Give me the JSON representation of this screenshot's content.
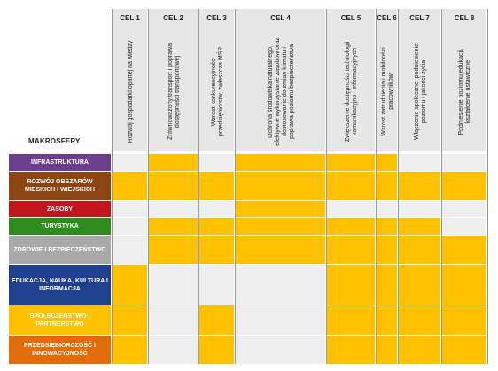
{
  "makrosfery_label": "MAKROSFERY",
  "colors": {
    "filled": "#ffc000",
    "empty": "#eeeeee",
    "header_bg": "#e6e6e6"
  },
  "goals": [
    {
      "title": "CEL 1",
      "desc": "Rozwój gospodarki opartej na wiedzy"
    },
    {
      "title": "CEL 2",
      "desc": "Zrównoważony transport i poprawa dostępności transportowej"
    },
    {
      "title": "CEL 3",
      "desc": "Wzrost konkurencyjności przedsiębiorstw, zwłaszcza MŚP"
    },
    {
      "title": "CEL 4",
      "desc": "Ochrona środowiska naturalnego, efektywne wykorzystanie zasobów oraz dostosowanie do zmian klimatu i poprawa poziomu bezpieczeństwa"
    },
    {
      "title": "CEL 5",
      "desc": "Zwiększenie dostępności technologii komunikacyjno - informacyjnych"
    },
    {
      "title": "CEL 6",
      "desc": "Wzrost zatrudnienia i mobilności pracowników"
    },
    {
      "title": "CEL 7",
      "desc": "Włączenie społeczne, podniesienie poziomu i jakości życia"
    },
    {
      "title": "CEL 8",
      "desc": "Podniesienie poziomu edukacji, kształcenie ustawiczne"
    }
  ],
  "rows": [
    {
      "label": "INFRASTRUKTURA",
      "color": "#6b3f8e",
      "cells": [
        0,
        1,
        0,
        1,
        1,
        1,
        0,
        0
      ]
    },
    {
      "label": "ROZWÓJ OBSZARÓW MIESKICH I WIEJSKICH",
      "color": "#8b4513",
      "cells": [
        1,
        1,
        1,
        1,
        1,
        1,
        1,
        1
      ]
    },
    {
      "label": "ZASOBY",
      "color": "#c0161c",
      "cells": [
        0,
        0,
        0,
        1,
        0,
        0,
        0,
        0
      ]
    },
    {
      "label": "TURYSTYKA",
      "color": "#2e8b1e",
      "cells": [
        0,
        1,
        1,
        1,
        1,
        1,
        1,
        0
      ]
    },
    {
      "label": "ZDROWIE I BEZPIECZEŃSTWO",
      "color": "#a9a9a9",
      "cells": [
        0,
        1,
        1,
        1,
        1,
        1,
        1,
        1
      ]
    },
    {
      "label": "EDUKACJA, NAUKA, KULTURA I INFORMACJA",
      "color": "#1f3f8f",
      "cells": [
        1,
        0,
        0,
        0,
        1,
        1,
        1,
        1
      ]
    },
    {
      "label": "SPOŁECZEŃSTWO I PARTNERSTWO",
      "color": "#ffc000",
      "cells": [
        1,
        0,
        1,
        0,
        1,
        1,
        1,
        1
      ]
    },
    {
      "label": "PRZEDSIĘBIORCZOŚĆ I INNOWACYJNOŚĆ",
      "color": "#e36c0a",
      "cells": [
        1,
        0,
        1,
        0,
        1,
        1,
        1,
        1
      ]
    }
  ]
}
